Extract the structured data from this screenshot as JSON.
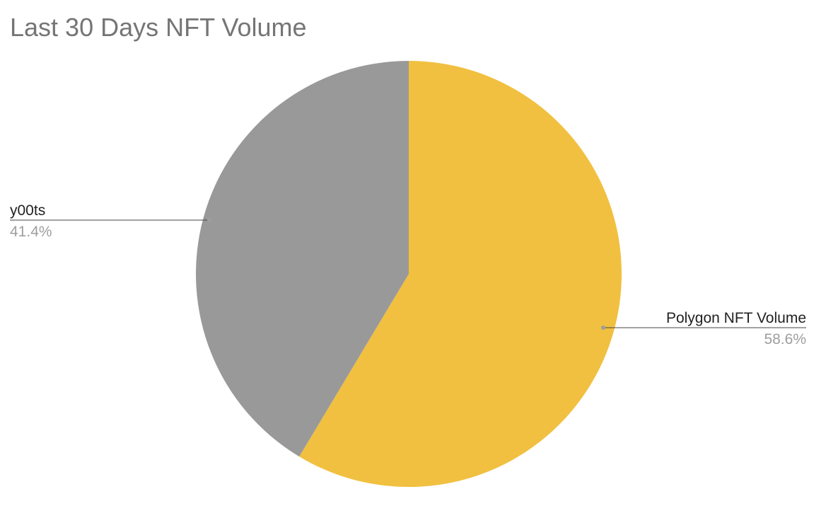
{
  "chart_data": {
    "type": "pie",
    "title": "Last 30 Days NFT Volume",
    "slices": [
      {
        "name": "Polygon NFT Volume",
        "value": 58.6,
        "label": "58.6%",
        "color": "#F1C040"
      },
      {
        "name": "y00ts",
        "value": 41.4,
        "label": "41.4%",
        "color": "#999999"
      }
    ],
    "legend": "none",
    "labels": "outside-with-leader-lines"
  }
}
